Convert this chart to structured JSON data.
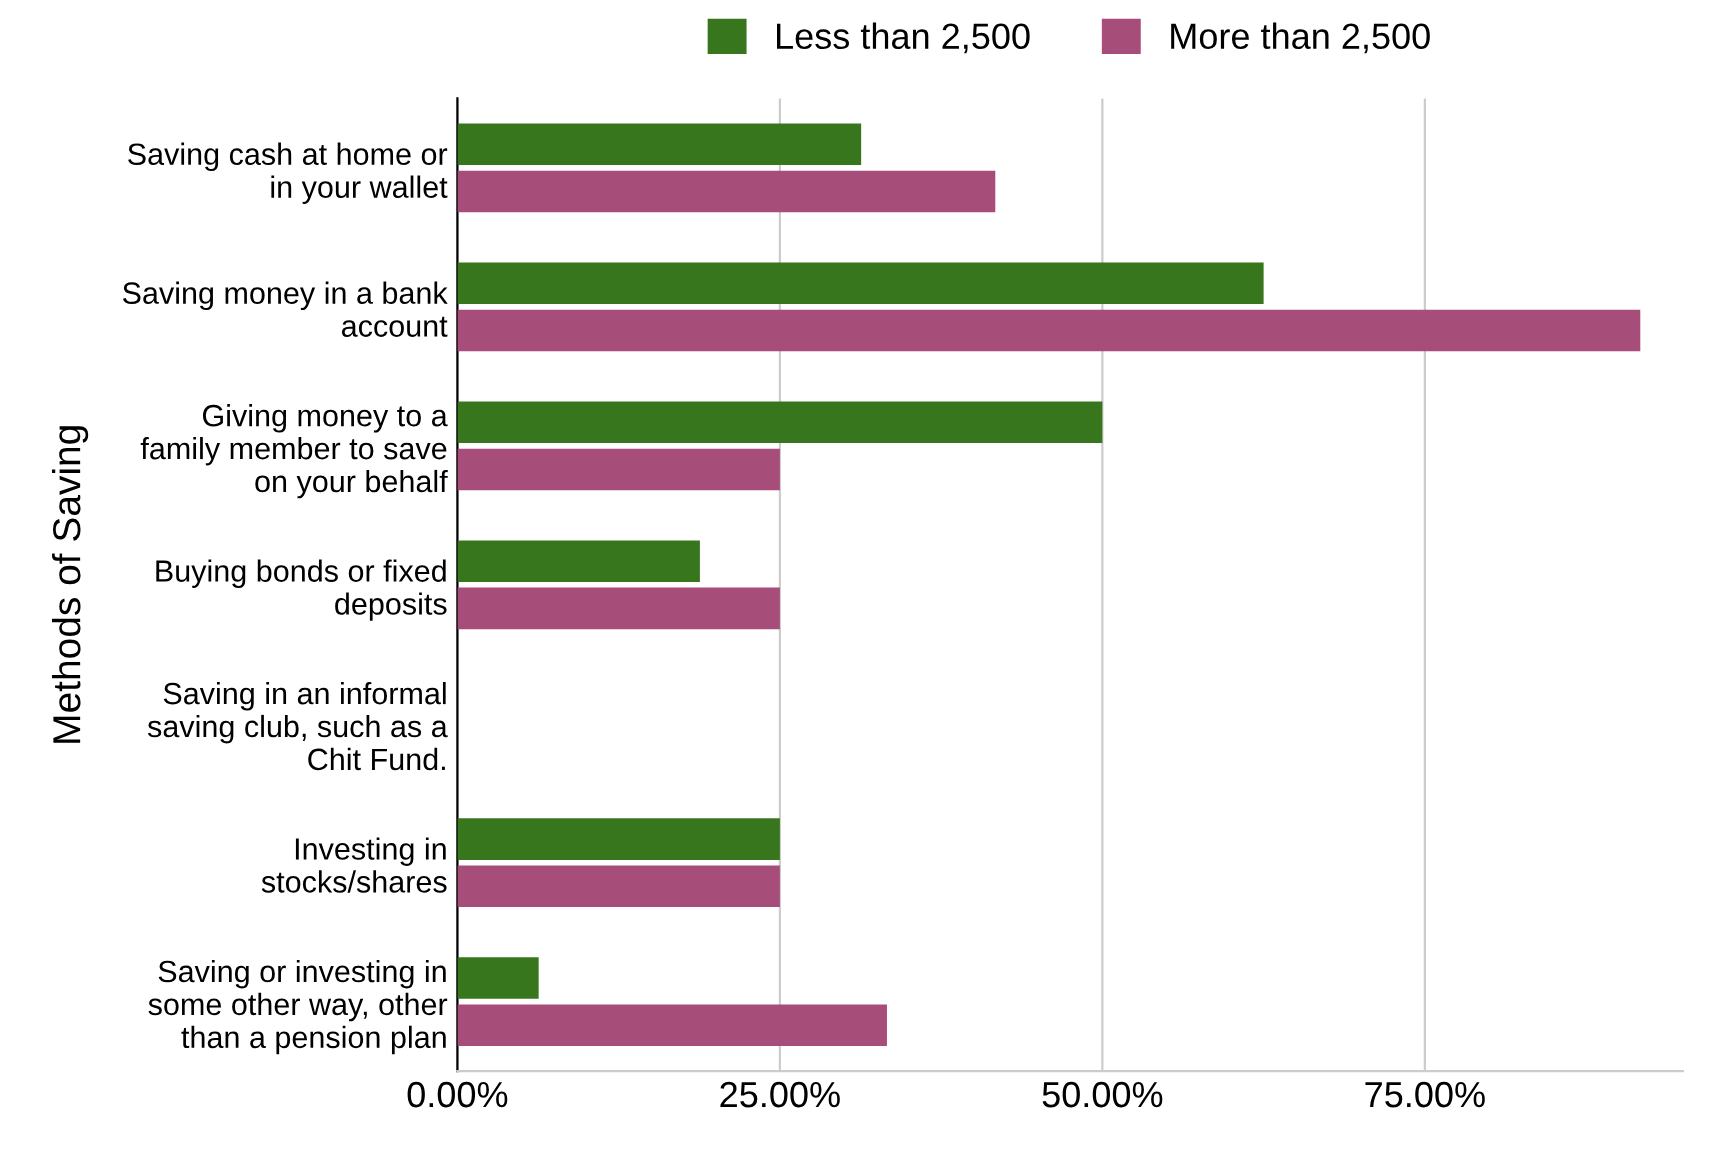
{
  "chart_data": {
    "type": "bar",
    "orientation": "horizontal",
    "ylabel": "Methods of Saving",
    "categories": [
      "Saving cash at home or\nin your wallet",
      "Saving money in a bank\naccount",
      "Giving money to a\nfamily member to save\non your behalf",
      "Buying bonds or fixed\ndeposits",
      "Saving in an informal\nsaving club, such as a\nChit Fund.",
      "Investing in\nstocks/shares",
      "Saving or investing in\nsome other way, other\nthan a pension plan"
    ],
    "series": [
      {
        "name": "Less than 2,500",
        "color": "#38761d",
        "values": [
          31.3,
          62.5,
          50,
          18.8,
          0,
          25,
          6.3
        ]
      },
      {
        "name": "More than 2,500",
        "color": "#a64d79",
        "values": [
          41.7,
          91.7,
          25,
          25,
          0,
          25,
          33.3
        ]
      }
    ],
    "xticks": [
      {
        "value": 0,
        "label": "0.00%"
      },
      {
        "value": 25,
        "label": "25.00%"
      },
      {
        "value": 50,
        "label": "50.00%"
      },
      {
        "value": 75,
        "label": "75.00%"
      }
    ],
    "xlim": [
      0,
      95
    ],
    "grid": "x",
    "legend": "top"
  }
}
